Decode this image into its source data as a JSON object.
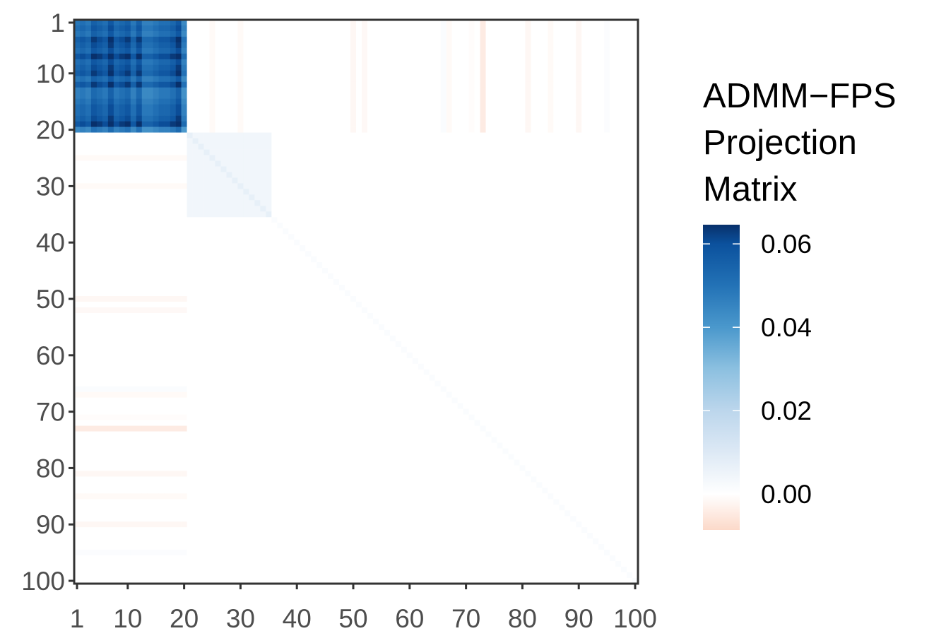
{
  "chart_data": {
    "type": "heatmap",
    "title": "",
    "xlabel": "",
    "ylabel": "",
    "n": 100,
    "x_ticks": [
      "1",
      "10",
      "20",
      "30",
      "40",
      "50",
      "60",
      "70",
      "80",
      "90",
      "100"
    ],
    "y_ticks": [
      "1",
      "10",
      "20",
      "30",
      "40",
      "50",
      "60",
      "70",
      "80",
      "90",
      "100"
    ],
    "y_reversed": true,
    "symmetric": true,
    "legend": {
      "title_lines": [
        "ADMM−FPS",
        "Projection",
        "Matrix"
      ],
      "labels": [
        "0.06",
        "0.04",
        "0.02",
        "0.00"
      ],
      "label_values": [
        0.06,
        0.04,
        0.02,
        0.0
      ],
      "range": [
        -0.0086,
        0.0646
      ],
      "position": "right"
    },
    "color_scale": {
      "stops": [
        {
          "value": -0.0086,
          "color": "#fcd9c9"
        },
        {
          "value": 0.0,
          "color": "#ffffff"
        },
        {
          "value": 0.01,
          "color": "#dde9f5"
        },
        {
          "value": 0.02,
          "color": "#bcd6ec"
        },
        {
          "value": 0.03,
          "color": "#8cc0e0"
        },
        {
          "value": 0.04,
          "color": "#4a98cc"
        },
        {
          "value": 0.05,
          "color": "#2372b6"
        },
        {
          "value": 0.06,
          "color": "#0b519d"
        },
        {
          "value": 0.0646,
          "color": "#08306b"
        }
      ]
    },
    "blocks": [
      {
        "range": [
          1,
          20
        ],
        "value_model": "outer product of weights",
        "weights": [
          0.21,
          0.22,
          0.21,
          0.24,
          0.23,
          0.22,
          0.25,
          0.22,
          0.23,
          0.24,
          0.21,
          0.24,
          0.2,
          0.2,
          0.21,
          0.22,
          0.22,
          0.23,
          0.25,
          0.19
        ]
      },
      {
        "range": [
          21,
          35
        ],
        "off_diagonal": 0.004,
        "diagonal": 0.007
      }
    ],
    "diagonal_outside_blocks": 0.0015,
    "cross_stripes_with_block_1": [
      {
        "index": 25,
        "value": -0.0012
      },
      {
        "index": 30,
        "value": -0.0012
      },
      {
        "index": 50,
        "value": -0.0018
      },
      {
        "index": 52,
        "value": -0.0015
      },
      {
        "index": 66,
        "value": 0.0015
      },
      {
        "index": 67,
        "value": -0.0012
      },
      {
        "index": 71,
        "value": -0.0006
      },
      {
        "index": 73,
        "value": -0.0045
      },
      {
        "index": 81,
        "value": -0.0018
      },
      {
        "index": 85,
        "value": -0.0012
      },
      {
        "index": 90,
        "value": -0.0018
      },
      {
        "index": 95,
        "value": 0.0012
      }
    ]
  }
}
